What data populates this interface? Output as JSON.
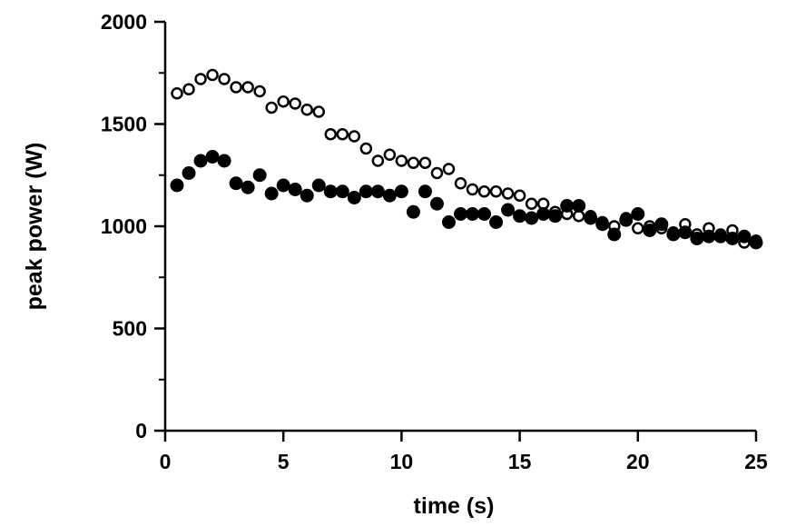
{
  "chart_data": {
    "type": "scatter",
    "title": "",
    "xlabel": "time (s)",
    "ylabel": "peak power (W)",
    "xlim": [
      0,
      25
    ],
    "ylim": [
      0,
      2000
    ],
    "x_ticks": [
      0,
      5,
      10,
      15,
      20,
      25
    ],
    "y_ticks": [
      0,
      500,
      1000,
      1500,
      2000
    ],
    "x_tick_labels": [
      "0",
      "5",
      "10",
      "15",
      "20",
      "25"
    ],
    "y_tick_labels": [
      "0",
      "500",
      "1000",
      "1500",
      "2000"
    ],
    "grid": false,
    "legend": "none",
    "series": [
      {
        "marker": "open-circle",
        "color": "#000000",
        "points": [
          [
            0.5,
            1650
          ],
          [
            1.0,
            1670
          ],
          [
            1.5,
            1720
          ],
          [
            2.0,
            1740
          ],
          [
            2.5,
            1720
          ],
          [
            3.0,
            1680
          ],
          [
            3.5,
            1680
          ],
          [
            4.0,
            1660
          ],
          [
            4.5,
            1580
          ],
          [
            5.0,
            1610
          ],
          [
            5.5,
            1600
          ],
          [
            6.0,
            1570
          ],
          [
            6.5,
            1560
          ],
          [
            7.0,
            1450
          ],
          [
            7.5,
            1450
          ],
          [
            8.0,
            1440
          ],
          [
            8.5,
            1380
          ],
          [
            9.0,
            1320
          ],
          [
            9.5,
            1350
          ],
          [
            10.0,
            1320
          ],
          [
            10.5,
            1310
          ],
          [
            11.0,
            1310
          ],
          [
            11.5,
            1260
          ],
          [
            12.0,
            1280
          ],
          [
            12.5,
            1210
          ],
          [
            13.0,
            1180
          ],
          [
            13.5,
            1170
          ],
          [
            14.0,
            1170
          ],
          [
            14.5,
            1160
          ],
          [
            15.0,
            1150
          ],
          [
            15.5,
            1110
          ],
          [
            16.0,
            1110
          ],
          [
            16.5,
            1070
          ],
          [
            17.0,
            1060
          ],
          [
            17.5,
            1050
          ],
          [
            18.0,
            1050
          ],
          [
            18.5,
            1020
          ],
          [
            19.0,
            1000
          ],
          [
            19.5,
            1040
          ],
          [
            20.0,
            990
          ],
          [
            20.5,
            1000
          ],
          [
            21.0,
            990
          ],
          [
            21.5,
            970
          ],
          [
            22.0,
            1010
          ],
          [
            22.5,
            960
          ],
          [
            23.0,
            990
          ],
          [
            23.5,
            960
          ],
          [
            24.0,
            980
          ],
          [
            24.5,
            920
          ],
          [
            25.0,
            930
          ]
        ]
      },
      {
        "marker": "filled-circle",
        "color": "#000000",
        "points": [
          [
            0.5,
            1200
          ],
          [
            1.0,
            1260
          ],
          [
            1.5,
            1320
          ],
          [
            2.0,
            1340
          ],
          [
            2.5,
            1320
          ],
          [
            3.0,
            1210
          ],
          [
            3.5,
            1190
          ],
          [
            4.0,
            1250
          ],
          [
            4.5,
            1160
          ],
          [
            5.0,
            1200
          ],
          [
            5.5,
            1180
          ],
          [
            6.0,
            1150
          ],
          [
            6.5,
            1200
          ],
          [
            7.0,
            1170
          ],
          [
            7.5,
            1170
          ],
          [
            8.0,
            1140
          ],
          [
            8.5,
            1170
          ],
          [
            9.0,
            1170
          ],
          [
            9.5,
            1150
          ],
          [
            10.0,
            1170
          ],
          [
            10.5,
            1070
          ],
          [
            11.0,
            1170
          ],
          [
            11.5,
            1110
          ],
          [
            12.0,
            1020
          ],
          [
            12.5,
            1060
          ],
          [
            13.0,
            1060
          ],
          [
            13.5,
            1060
          ],
          [
            14.0,
            1020
          ],
          [
            14.5,
            1080
          ],
          [
            15.0,
            1050
          ],
          [
            15.5,
            1040
          ],
          [
            16.0,
            1060
          ],
          [
            16.5,
            1050
          ],
          [
            17.0,
            1100
          ],
          [
            17.5,
            1100
          ],
          [
            18.0,
            1040
          ],
          [
            18.5,
            1010
          ],
          [
            19.0,
            960
          ],
          [
            19.5,
            1030
          ],
          [
            20.0,
            1060
          ],
          [
            20.5,
            980
          ],
          [
            21.0,
            1010
          ],
          [
            21.5,
            960
          ],
          [
            22.0,
            970
          ],
          [
            22.5,
            940
          ],
          [
            23.0,
            950
          ],
          [
            23.5,
            950
          ],
          [
            24.0,
            940
          ],
          [
            24.5,
            950
          ],
          [
            25.0,
            920
          ]
        ]
      }
    ]
  }
}
